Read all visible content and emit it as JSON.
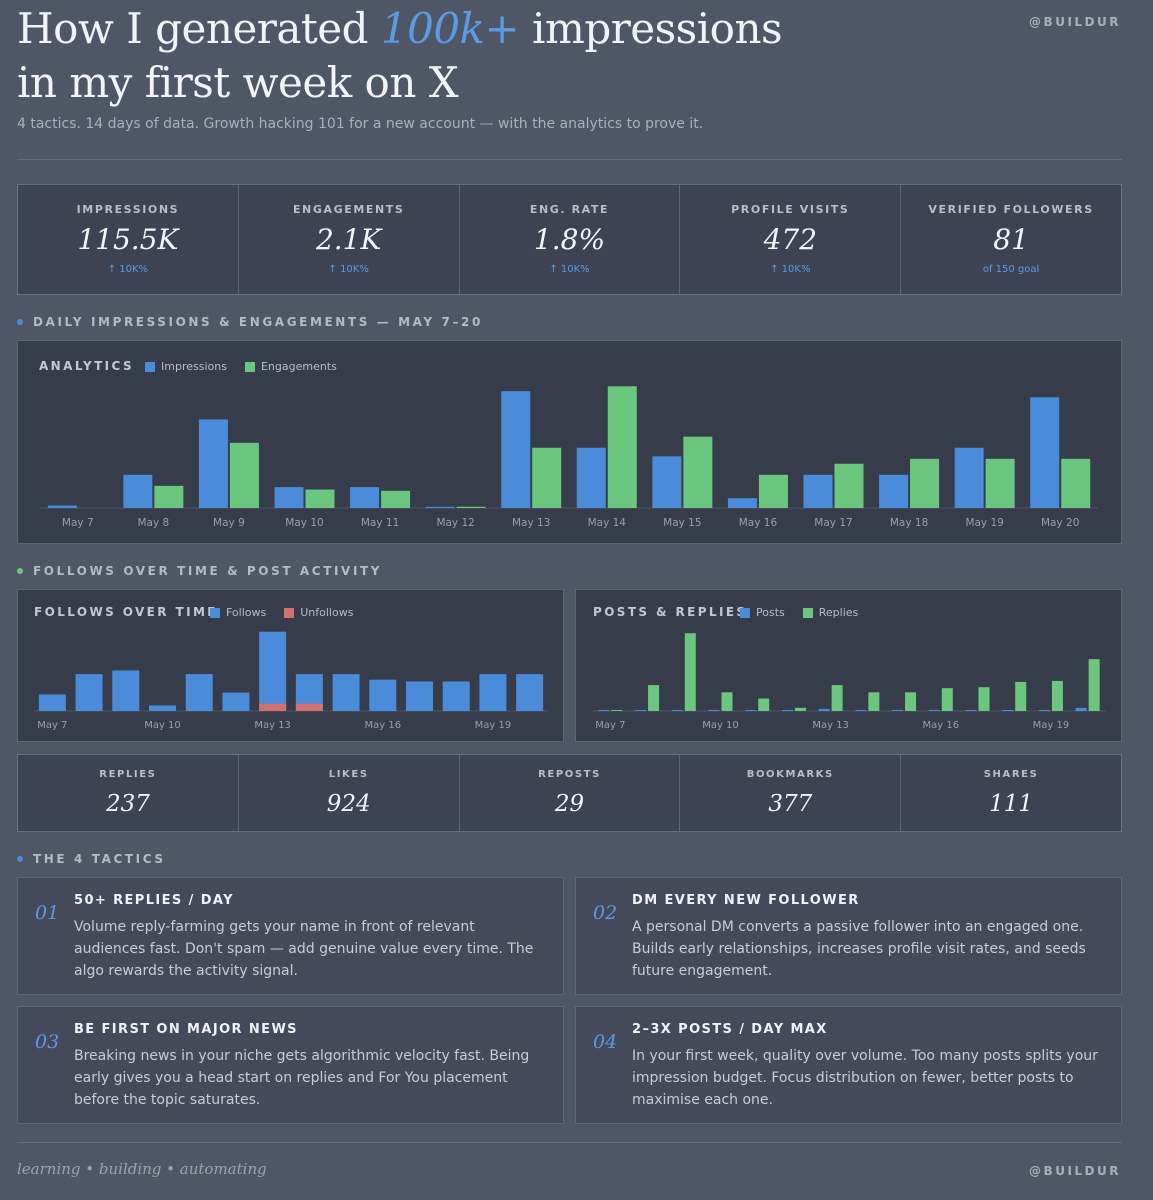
{
  "header": {
    "title_line1_a": "How I generated ",
    "title_accent": "100k+",
    "title_line1_b": " impressions",
    "title_line2": "in my first week on X",
    "handle": "@BUILDUR",
    "subtitle": "4 tactics. 14 days of data. Growth hacking 101 for a new account — with the analytics to prove it."
  },
  "stats": [
    {
      "label": "IMPRESSIONS",
      "value": "115.5K",
      "sub": "↑ 10K%"
    },
    {
      "label": "ENGAGEMENTS",
      "value": "2.1K",
      "sub": "↑ 10K%"
    },
    {
      "label": "ENG. RATE",
      "value": "1.8%",
      "sub": "↑ 10K%"
    },
    {
      "label": "PROFILE VISITS",
      "value": "472",
      "sub": "↑ 10K%"
    },
    {
      "label": "VERIFIED FOLLOWERS",
      "value": "81",
      "sub": "of 150 goal"
    }
  ],
  "sections": {
    "daily": "DAILY IMPRESSIONS & ENGAGEMENTS — MAY 7–20",
    "follows": "FOLLOWS OVER TIME & POST ACTIVITY",
    "tactics": "THE 4 TACTICS"
  },
  "colors": {
    "blue": "#4a8cd9",
    "green": "#6cc77e",
    "red": "#d0706f",
    "dot_blue": "#4a8cd9",
    "dot_green": "#6cc77e"
  },
  "chart_data": [
    {
      "type": "bar",
      "title": "ANALYTICS",
      "categories": [
        "May 7",
        "May 8",
        "May 9",
        "May 10",
        "May 11",
        "May 12",
        "May 13",
        "May 14",
        "May 15",
        "May 16",
        "May 17",
        "May 18",
        "May 19",
        "May 20"
      ],
      "series": [
        {
          "name": "Impressions",
          "values": [
            2,
            27,
            72,
            17,
            17,
            1,
            95,
            49,
            42,
            8,
            27,
            27,
            49,
            90
          ]
        },
        {
          "name": "Engagements",
          "values": [
            0,
            18,
            53,
            15,
            14,
            1,
            49,
            99,
            58,
            27,
            36,
            40,
            40,
            40
          ]
        }
      ],
      "ylim": [
        0,
        100
      ],
      "legend": "top-left"
    },
    {
      "type": "bar",
      "title": "FOLLOWS OVER TIME",
      "categories": [
        "May 7",
        "May 8",
        "May 9",
        "May 10",
        "May 11",
        "May 12",
        "May 13",
        "May 14",
        "May 15",
        "May 16",
        "May 17",
        "May 18",
        "May 19",
        "May 20"
      ],
      "x_tick_labels": [
        "May 7",
        "May 10",
        "May 13",
        "May 16",
        "May 19"
      ],
      "series": [
        {
          "name": "Follows",
          "values": [
            9,
            20,
            22,
            3,
            20,
            10,
            43,
            20,
            20,
            17,
            16,
            16,
            20,
            20
          ]
        },
        {
          "name": "Unfollows",
          "values": [
            0,
            0,
            0,
            0,
            0,
            0,
            4,
            4,
            0,
            0,
            0,
            0,
            0,
            0
          ]
        }
      ],
      "ylim": [
        0,
        45
      ],
      "stacked": true,
      "legend": "top-left"
    },
    {
      "type": "bar",
      "title": "POSTS & REPLIES",
      "categories": [
        "May 7",
        "May 8",
        "May 9",
        "May 10",
        "May 11",
        "May 12",
        "May 13",
        "May 14",
        "May 15",
        "May 16",
        "May 17",
        "May 18",
        "May 19",
        "May 20"
      ],
      "x_tick_labels": [
        "May 7",
        "May 10",
        "May 13",
        "May 16",
        "May 19"
      ],
      "series": [
        {
          "name": "Posts",
          "values": [
            1,
            1,
            1,
            1,
            1,
            1,
            2,
            1,
            1,
            1,
            1,
            1,
            1,
            3
          ]
        },
        {
          "name": "Replies",
          "values": [
            1,
            25,
            75,
            18,
            12,
            3,
            25,
            18,
            18,
            22,
            23,
            28,
            29,
            50
          ]
        }
      ],
      "ylim": [
        0,
        80
      ],
      "legend": "top-left"
    }
  ],
  "engagement_stats": [
    {
      "label": "REPLIES",
      "value": "237"
    },
    {
      "label": "LIKES",
      "value": "924"
    },
    {
      "label": "REPOSTS",
      "value": "29"
    },
    {
      "label": "BOOKMARKS",
      "value": "377"
    },
    {
      "label": "SHARES",
      "value": "111"
    }
  ],
  "tactics": [
    {
      "num": "01",
      "title": "50+ REPLIES / DAY",
      "body": "Volume reply-farming gets your name in front of relevant audiences fast. Don't spam — add genuine value every time. The algo rewards the activity signal."
    },
    {
      "num": "02",
      "title": "DM EVERY NEW FOLLOWER",
      "body": "A personal DM converts a passive follower into an engaged one. Builds early relationships, increases profile visit rates, and seeds future engagement."
    },
    {
      "num": "03",
      "title": "BE FIRST ON MAJOR NEWS",
      "body": "Breaking news in your niche gets algorithmic velocity fast. Being early gives you a head start on replies and For You placement before the topic saturates."
    },
    {
      "num": "04",
      "title": "2–3X POSTS / DAY MAX",
      "body": "In your first week, quality over volume. Too many posts splits your impression budget. Focus distribution on fewer, better posts to maximise each one."
    }
  ],
  "footer": {
    "left": "learning • building • automating",
    "right": "@BUILDUR"
  }
}
